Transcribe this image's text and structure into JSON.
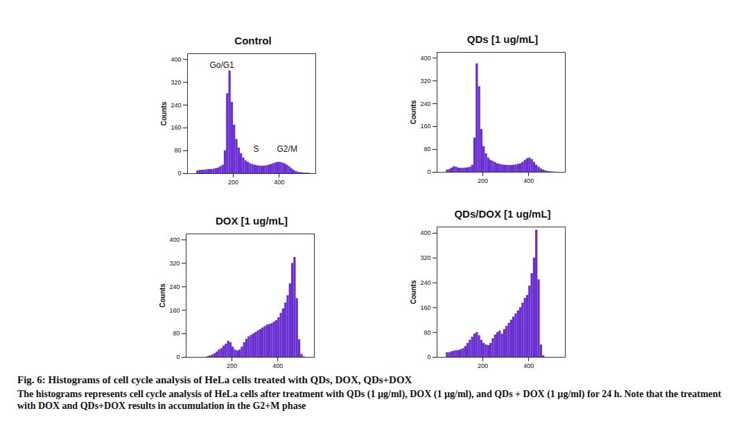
{
  "chart_data": [
    {
      "type": "histogram",
      "title": "Control",
      "y_label": "Counts",
      "color": "#6a2fd0",
      "bins": [
        40,
        50,
        60,
        70,
        80,
        90,
        100,
        110,
        120,
        130,
        140,
        150,
        160,
        170,
        180,
        190,
        200,
        210,
        220,
        230,
        240,
        250,
        260,
        270,
        280,
        290,
        300,
        310,
        320,
        330,
        340,
        350,
        360,
        370,
        380,
        390,
        400,
        410,
        420,
        430,
        440,
        450,
        460,
        470,
        480,
        490,
        500,
        510,
        520,
        530,
        540
      ],
      "values": [
        10,
        12,
        12,
        12,
        14,
        15,
        15,
        16,
        18,
        20,
        25,
        30,
        80,
        280,
        360,
        250,
        170,
        120,
        90,
        70,
        55,
        45,
        40,
        35,
        32,
        30,
        28,
        27,
        26,
        27,
        28,
        30,
        32,
        35,
        38,
        40,
        40,
        38,
        35,
        30,
        25,
        18,
        12,
        8,
        5,
        4,
        3,
        2,
        2,
        1
      ],
      "xlim": [
        0,
        560
      ],
      "xticks": [
        200,
        400
      ],
      "ylim": [
        0,
        420
      ],
      "yticks": [
        0,
        80,
        160,
        240,
        320,
        400
      ],
      "annotations": [
        {
          "text": "Go/G1",
          "x": 150,
          "y": 380
        },
        {
          "text": "S",
          "x": 300,
          "y": 85
        },
        {
          "text": "G2/M",
          "x": 435,
          "y": 85
        }
      ]
    },
    {
      "type": "histogram",
      "title": "QDs [1 ug/mL]",
      "y_label": "Counts",
      "color": "#6a2fd0",
      "bins": [
        40,
        50,
        60,
        70,
        80,
        90,
        100,
        110,
        120,
        130,
        140,
        150,
        160,
        170,
        180,
        190,
        200,
        210,
        220,
        230,
        240,
        250,
        260,
        270,
        280,
        290,
        300,
        310,
        320,
        330,
        340,
        350,
        360,
        370,
        380,
        390,
        400,
        410,
        420,
        430,
        440,
        450,
        460,
        470,
        480,
        490,
        500,
        510,
        520,
        530,
        540
      ],
      "values": [
        8,
        10,
        15,
        20,
        18,
        15,
        14,
        14,
        15,
        16,
        18,
        25,
        120,
        380,
        300,
        150,
        90,
        65,
        50,
        42,
        38,
        34,
        30,
        28,
        26,
        25,
        24,
        24,
        24,
        25,
        26,
        28,
        30,
        35,
        42,
        48,
        50,
        45,
        35,
        25,
        18,
        12,
        8,
        5,
        3,
        2,
        1,
        1,
        0,
        0
      ],
      "xlim": [
        0,
        560
      ],
      "xticks": [
        200,
        400
      ],
      "ylim": [
        0,
        420
      ],
      "yticks": [
        0,
        80,
        160,
        240,
        320,
        400
      ]
    },
    {
      "type": "histogram",
      "title": "DOX [1 ug/mL]",
      "y_label": "Counts",
      "color": "#6a2fd0",
      "bins": [
        40,
        50,
        60,
        70,
        80,
        90,
        100,
        110,
        120,
        130,
        140,
        150,
        160,
        170,
        180,
        190,
        200,
        210,
        220,
        230,
        240,
        250,
        260,
        270,
        280,
        290,
        300,
        310,
        320,
        330,
        340,
        350,
        360,
        370,
        380,
        390,
        400,
        410,
        420,
        430,
        440,
        450,
        460,
        470,
        480,
        490,
        500,
        510,
        520,
        530,
        540
      ],
      "values": [
        0,
        0,
        0,
        0,
        0,
        2,
        5,
        8,
        12,
        18,
        25,
        30,
        38,
        45,
        55,
        50,
        35,
        25,
        22,
        25,
        35,
        50,
        62,
        70,
        75,
        80,
        85,
        90,
        95,
        100,
        105,
        110,
        112,
        115,
        120,
        125,
        135,
        150,
        165,
        185,
        210,
        250,
        320,
        340,
        200,
        60,
        10,
        2,
        0,
        0
      ],
      "xlim": [
        0,
        560
      ],
      "xticks": [
        200,
        400
      ],
      "ylim": [
        0,
        420
      ],
      "yticks": [
        0,
        80,
        160,
        240,
        320,
        400
      ]
    },
    {
      "type": "histogram",
      "title": "QDs/DOX [1 ug/mL]",
      "y_label": "Counts",
      "color": "#6a2fd0",
      "bins": [
        40,
        50,
        60,
        70,
        80,
        90,
        100,
        110,
        120,
        130,
        140,
        150,
        160,
        170,
        180,
        190,
        200,
        210,
        220,
        230,
        240,
        250,
        260,
        270,
        280,
        290,
        300,
        310,
        320,
        330,
        340,
        350,
        360,
        370,
        380,
        390,
        400,
        410,
        420,
        430,
        440,
        450,
        460,
        470,
        480,
        490,
        500,
        510,
        520,
        530,
        540
      ],
      "values": [
        15,
        15,
        18,
        20,
        22,
        22,
        25,
        28,
        35,
        45,
        55,
        65,
        75,
        80,
        70,
        55,
        45,
        40,
        38,
        45,
        60,
        72,
        80,
        85,
        75,
        90,
        100,
        110,
        120,
        130,
        140,
        150,
        160,
        175,
        190,
        200,
        230,
        270,
        320,
        410,
        250,
        40,
        5,
        0,
        0,
        0,
        0,
        0,
        0,
        0
      ],
      "xlim": [
        0,
        560
      ],
      "xticks": [
        200,
        400
      ],
      "ylim": [
        0,
        420
      ],
      "yticks": [
        0,
        80,
        160,
        240,
        320,
        400
      ]
    }
  ],
  "caption": {
    "title": "Fig. 6: Histograms of cell cycle analysis of HeLa cells treated with QDs, DOX, QDs+DOX",
    "text": "The histograms represents cell cycle analysis of HeLa cells after treatment with QDs (1 µg/ml), DOX (1 µg/ml), and QDs + DOX (1 µg/ml) for 24 h. Note that the treatment with DOX and QDs+DOX results in accumulation in the G2+M phase"
  }
}
